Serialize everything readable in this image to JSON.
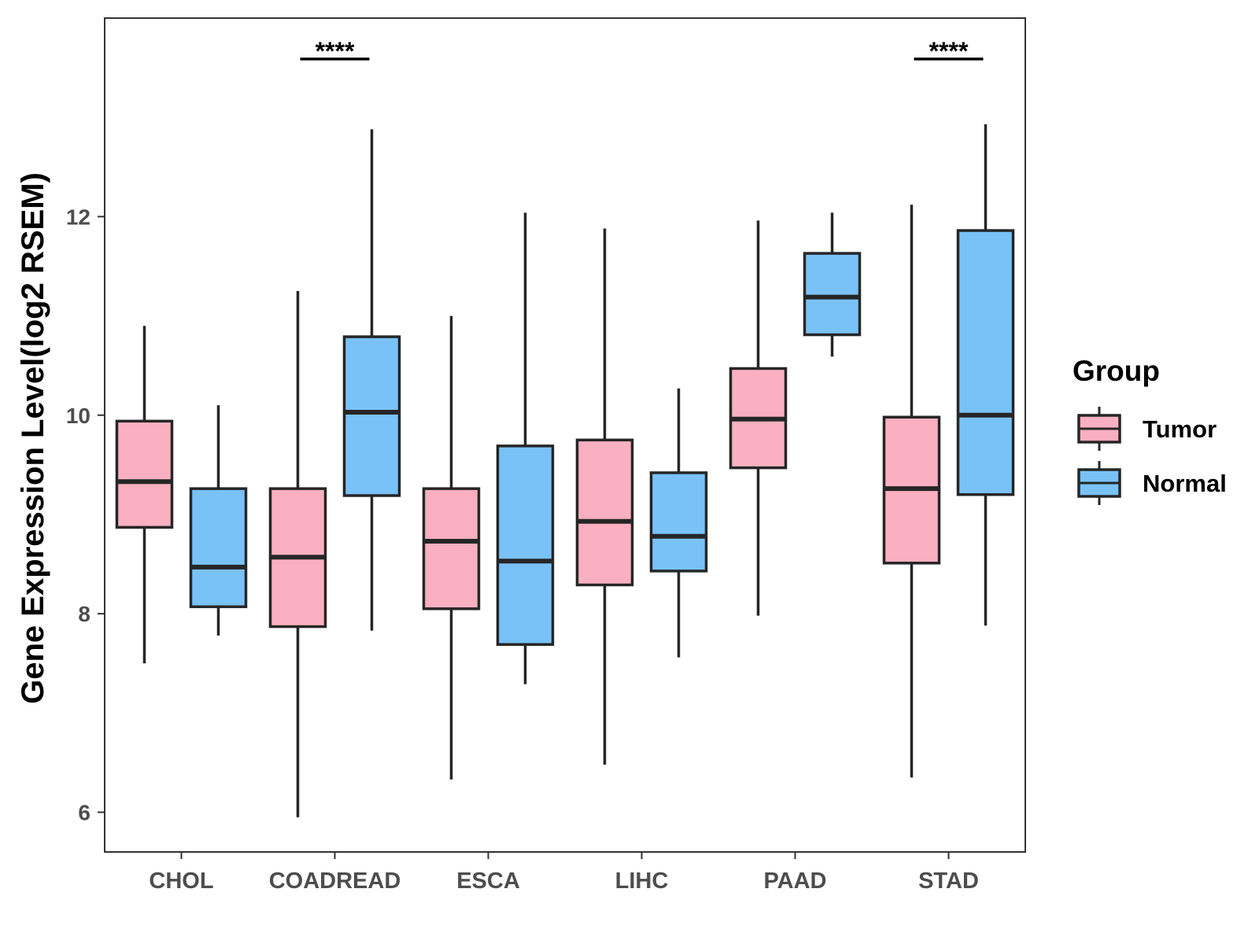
{
  "chart_data": {
    "type": "boxplot",
    "title": "",
    "xlabel": "",
    "ylabel": "Gene Expression Level(log2 RSEM)",
    "ylim": [
      5.6,
      14.0
    ],
    "yticks": [
      6,
      8,
      10,
      12
    ],
    "categories": [
      "CHOL",
      "COADREAD",
      "ESCA",
      "LIHC",
      "PAAD",
      "STAD"
    ],
    "legend": {
      "title": "Group",
      "position": "right"
    },
    "series": [
      {
        "name": "Tumor",
        "color": "#FAB0C0",
        "boxes": [
          {
            "category": "CHOL",
            "whisker_low": 7.5,
            "q1": 8.87,
            "median": 9.33,
            "q3": 9.94,
            "whisker_high": 10.9
          },
          {
            "category": "COADREAD",
            "whisker_low": 5.95,
            "q1": 7.87,
            "median": 8.57,
            "q3": 9.26,
            "whisker_high": 11.25
          },
          {
            "category": "ESCA",
            "whisker_low": 6.33,
            "q1": 8.05,
            "median": 8.73,
            "q3": 9.26,
            "whisker_high": 11.0
          },
          {
            "category": "LIHC",
            "whisker_low": 6.48,
            "q1": 8.29,
            "median": 8.93,
            "q3": 9.75,
            "whisker_high": 11.88
          },
          {
            "category": "PAAD",
            "whisker_low": 7.98,
            "q1": 9.47,
            "median": 9.96,
            "q3": 10.47,
            "whisker_high": 11.96
          },
          {
            "category": "STAD",
            "whisker_low": 6.35,
            "q1": 8.51,
            "median": 9.26,
            "q3": 9.98,
            "whisker_high": 12.12
          }
        ]
      },
      {
        "name": "Normal",
        "color": "#79C2F8",
        "boxes": [
          {
            "category": "CHOL",
            "whisker_low": 7.78,
            "q1": 8.07,
            "median": 8.47,
            "q3": 9.26,
            "whisker_high": 10.1
          },
          {
            "category": "COADREAD",
            "whisker_low": 7.83,
            "q1": 9.19,
            "median": 10.03,
            "q3": 10.79,
            "whisker_high": 12.88
          },
          {
            "category": "ESCA",
            "whisker_low": 7.29,
            "q1": 7.69,
            "median": 8.53,
            "q3": 9.69,
            "whisker_high": 12.04
          },
          {
            "category": "LIHC",
            "whisker_low": 7.56,
            "q1": 8.43,
            "median": 8.78,
            "q3": 9.42,
            "whisker_high": 10.27
          },
          {
            "category": "PAAD",
            "whisker_low": 10.59,
            "q1": 10.81,
            "median": 11.19,
            "q3": 11.63,
            "whisker_high": 12.04
          },
          {
            "category": "STAD",
            "whisker_low": 7.88,
            "q1": 9.2,
            "median": 10.0,
            "q3": 11.86,
            "whisker_high": 12.93
          }
        ]
      }
    ],
    "annotations": [
      {
        "category": "COADREAD",
        "text": "****"
      },
      {
        "category": "STAD",
        "text": "****"
      }
    ]
  },
  "colors": {
    "tumor": "#FAB0C0",
    "normal": "#79C2F8",
    "stroke": "#262626",
    "axis_text": "#4d4d4d"
  }
}
